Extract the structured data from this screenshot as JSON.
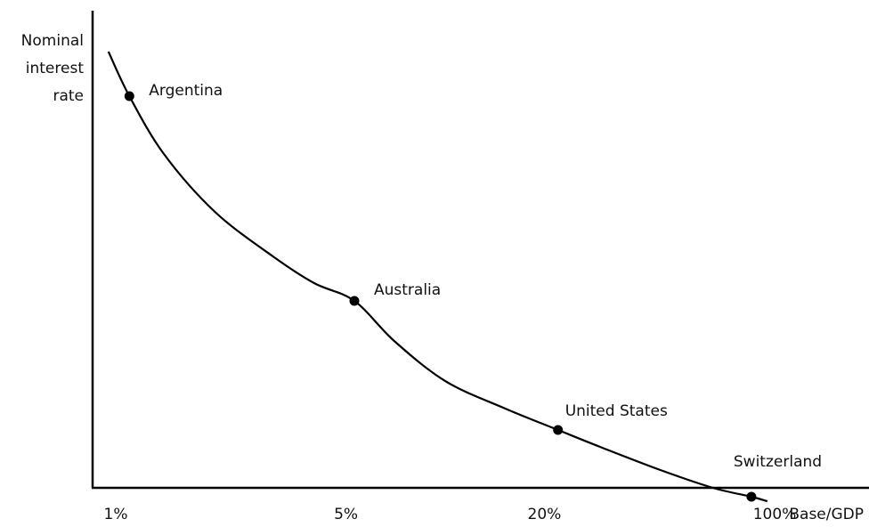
{
  "chart_data": {
    "type": "line",
    "title": "",
    "ylabel": [
      "Nominal",
      "interest",
      "rate"
    ],
    "xlabel": "Base/GDP",
    "x_scale": "log",
    "x_ticks": [
      {
        "value": 1,
        "label": "1%"
      },
      {
        "value": 5,
        "label": "5%"
      },
      {
        "value": 20,
        "label": "20%"
      },
      {
        "value": 100,
        "label": "100%"
      }
    ],
    "ylim": [
      0,
      100
    ],
    "series": [
      {
        "points": [
          {
            "label": "Argentina",
            "x": 1.1,
            "y": 88
          },
          {
            "label": "Australia",
            "x": 5.3,
            "y": 42
          },
          {
            "label": "United States",
            "x": 22,
            "y": 13
          },
          {
            "label": "Switzerland",
            "x": 85,
            "y": -2
          }
        ]
      }
    ],
    "curve": {
      "x": [
        0.95,
        1.1,
        1.4,
        2,
        3,
        4,
        5.3,
        7,
        10,
        15,
        22,
        30,
        45,
        65,
        85,
        95
      ],
      "y": [
        98,
        88,
        75,
        62,
        52,
        46,
        42,
        33,
        24,
        18,
        13,
        9,
        4,
        0,
        -2,
        -3
      ]
    },
    "grid": false,
    "legend": "none"
  }
}
